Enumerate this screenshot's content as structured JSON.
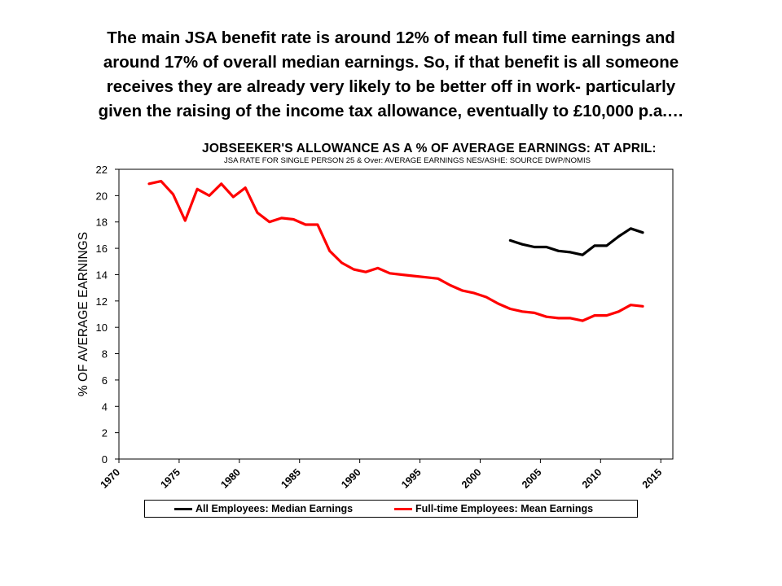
{
  "headline": {
    "line1": "The main JSA benefit rate is around 12% of mean full time earnings and",
    "line2": "around 17% of overall median earnings. So, if that benefit is all someone",
    "line3": "receives they are already very likely to be better off in work- particularly",
    "line4": "given the raising of the income tax allowance, eventually to £10,000 p.a.…"
  },
  "chart_data": {
    "type": "line",
    "title": "JOBSEEKER'S ALLOWANCE AS A % OF AVERAGE EARNINGS: AT APRIL:",
    "subtitle": "JSA RATE FOR SINGLE PERSON 25 & Over: AVERAGE EARNINGS NES/ASHE: SOURCE DWP/NOMIS",
    "xlabel": "",
    "ylabel": "% OF AVERAGE EARNINGS",
    "xlim": [
      1970,
      2016
    ],
    "ylim": [
      0,
      22
    ],
    "xticks": [
      1970,
      1975,
      1980,
      1985,
      1990,
      1995,
      2000,
      2005,
      2010,
      2015
    ],
    "yticks": [
      0,
      2,
      4,
      6,
      8,
      10,
      12,
      14,
      16,
      18,
      20,
      22
    ],
    "grid": false,
    "legend": "bottom",
    "series": [
      {
        "name": "All Employees: Median Earnings",
        "color": "#000000",
        "x": [
          2002.5,
          2003.5,
          2004.5,
          2005.5,
          2006.5,
          2007.5,
          2008.5,
          2009.5,
          2010.5,
          2011.5,
          2012.5,
          2013.5
        ],
        "y": [
          16.6,
          16.3,
          16.1,
          16.1,
          15.8,
          15.7,
          15.5,
          16.2,
          16.2,
          16.9,
          17.5,
          17.2
        ]
      },
      {
        "name": "Full-time Employees: Mean Earnings",
        "color": "#ff0000",
        "x": [
          1972.5,
          1973.5,
          1974.5,
          1975.5,
          1976.5,
          1977.5,
          1978.5,
          1979.5,
          1980.5,
          1981.5,
          1982.5,
          1983.5,
          1984.5,
          1985.5,
          1986.5,
          1987.5,
          1988.5,
          1989.5,
          1990.5,
          1991.5,
          1992.5,
          1993.5,
          1994.5,
          1995.5,
          1996.5,
          1997.5,
          1998.5,
          1999.5,
          2000.5,
          2001.5,
          2002.5,
          2003.5,
          2004.5,
          2005.5,
          2006.5,
          2007.5,
          2008.5,
          2009.5,
          2010.5,
          2011.5,
          2012.5,
          2013.5
        ],
        "y": [
          20.9,
          21.1,
          20.1,
          18.1,
          20.5,
          20.0,
          20.9,
          19.9,
          20.6,
          18.7,
          18.0,
          18.3,
          18.2,
          17.8,
          17.8,
          15.8,
          14.9,
          14.4,
          14.2,
          14.5,
          14.1,
          14.0,
          13.9,
          13.8,
          13.7,
          13.2,
          12.8,
          12.6,
          12.3,
          11.8,
          11.4,
          11.2,
          11.1,
          10.8,
          10.7,
          10.7,
          10.5,
          10.9,
          10.9,
          11.2,
          11.7,
          11.6
        ]
      }
    ]
  }
}
